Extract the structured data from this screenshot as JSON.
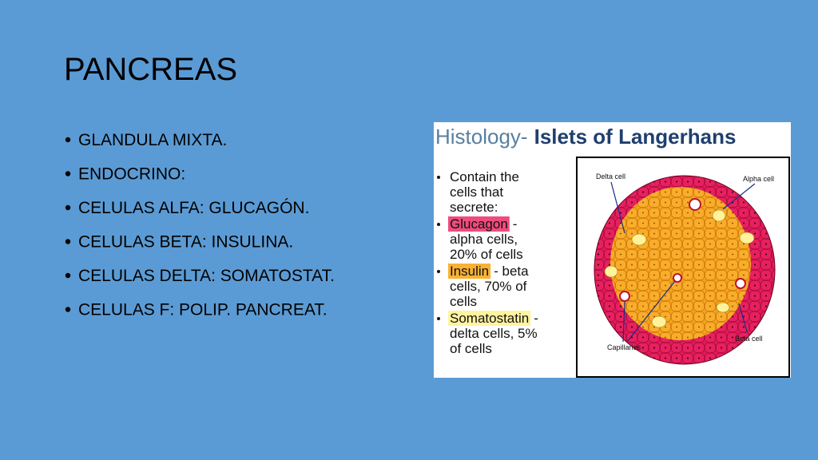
{
  "title": "PANCREAS",
  "bullets": [
    "GLANDULA MIXTA.",
    "ENDOCRINO:",
    "CELULAS ALFA: GLUCAGÓN.",
    "CELULAS BETA: INSULINA.",
    "CELULAS DELTA: SOMATOSTAT.",
    "CELULAS F: POLIP. PANCREAT."
  ],
  "figure": {
    "heading": {
      "lead": "Histology-",
      "main": "Islets of Langerhans"
    },
    "intro": [
      "Contain the",
      "cells that",
      "secrete:"
    ],
    "items": [
      {
        "highlight": "Glucagon",
        "after": "-",
        "lines": [
          "alpha cells,",
          "20% of cells"
        ]
      },
      {
        "highlight": "Insulin",
        "after": "- beta",
        "lines": [
          "cells, 70% of",
          "cells"
        ]
      },
      {
        "highlight": "Somatostatin",
        "after": "-",
        "lines": [
          "delta cells, 5%",
          "of cells"
        ]
      }
    ],
    "labels": {
      "delta": "Delta cell",
      "alpha": "Alpha cell",
      "capillaries": "Capillaries",
      "beta": "Beta cell"
    }
  }
}
